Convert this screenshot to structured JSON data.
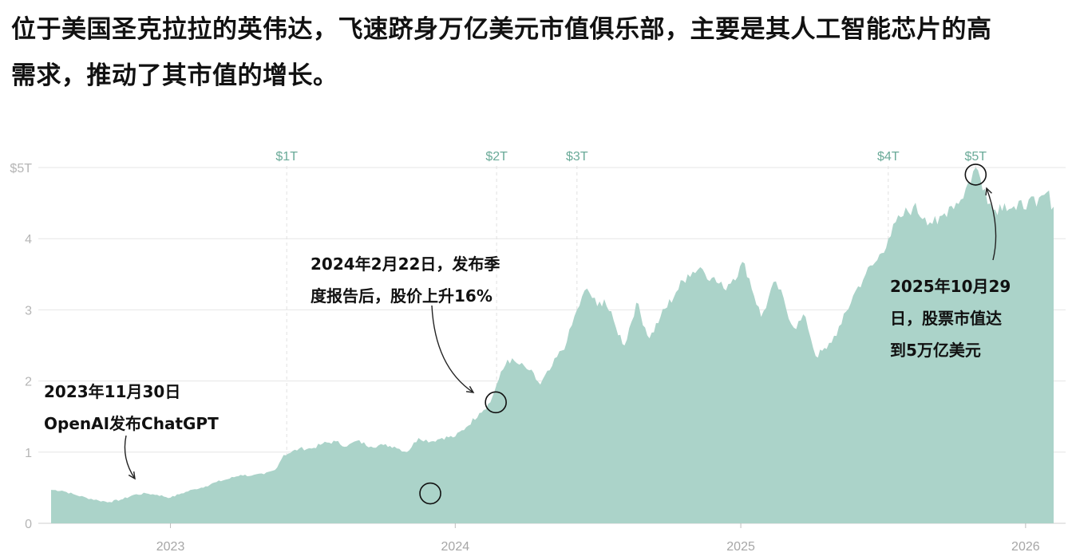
{
  "headline": {
    "line1": "位于美国圣克拉拉的英伟达，飞速跻身万亿美元市值俱乐部，主要是其人工智能芯片的高",
    "line2": "需求，推动了其市值的增长。"
  },
  "chart_data": {
    "type": "area",
    "title": "",
    "xlabel": "",
    "ylabel": "",
    "ylim": [
      0,
      5
    ],
    "y_ticks": [
      "$5T",
      "4",
      "3",
      "2",
      "1",
      "0"
    ],
    "x_ticks": [
      "2023",
      "2024",
      "2025",
      "2026"
    ],
    "grid": true,
    "color": "#abd3c9",
    "milestone_color": "#6aaa98",
    "milestones": [
      {
        "label": "$1T",
        "date": "2023-05-30"
      },
      {
        "label": "$2T",
        "date": "2024-02-23"
      },
      {
        "label": "$3T",
        "date": "2024-06-05"
      },
      {
        "label": "$4T",
        "date": "2025-07-09"
      },
      {
        "label": "$5T",
        "date": "2025-10-29"
      }
    ],
    "series": [
      {
        "unit": "trillion USD",
        "points": [
          [
            "2022-08-01",
            0.47
          ],
          [
            "2022-08-15",
            0.46
          ],
          [
            "2022-09-01",
            0.4
          ],
          [
            "2022-09-15",
            0.36
          ],
          [
            "2022-10-01",
            0.32
          ],
          [
            "2022-10-15",
            0.3
          ],
          [
            "2022-11-01",
            0.34
          ],
          [
            "2022-11-15",
            0.4
          ],
          [
            "2022-12-01",
            0.42
          ],
          [
            "2022-12-15",
            0.4
          ],
          [
            "2023-01-01",
            0.36
          ],
          [
            "2023-01-15",
            0.42
          ],
          [
            "2023-02-01",
            0.48
          ],
          [
            "2023-02-15",
            0.52
          ],
          [
            "2023-03-01",
            0.58
          ],
          [
            "2023-03-15",
            0.62
          ],
          [
            "2023-04-01",
            0.68
          ],
          [
            "2023-04-15",
            0.67
          ],
          [
            "2023-05-01",
            0.69
          ],
          [
            "2023-05-15",
            0.75
          ],
          [
            "2023-05-26",
            0.96
          ],
          [
            "2023-06-01",
            0.98
          ],
          [
            "2023-06-15",
            1.05
          ],
          [
            "2023-07-01",
            1.05
          ],
          [
            "2023-07-15",
            1.12
          ],
          [
            "2023-08-01",
            1.15
          ],
          [
            "2023-08-15",
            1.08
          ],
          [
            "2023-08-28",
            1.16
          ],
          [
            "2023-09-15",
            1.08
          ],
          [
            "2023-10-01",
            1.1
          ],
          [
            "2023-10-15",
            1.08
          ],
          [
            "2023-10-31",
            1.0
          ],
          [
            "2023-11-15",
            1.2
          ],
          [
            "2023-12-01",
            1.15
          ],
          [
            "2023-12-15",
            1.2
          ],
          [
            "2024-01-01",
            1.22
          ],
          [
            "2024-01-15",
            1.35
          ],
          [
            "2024-02-01",
            1.55
          ],
          [
            "2024-02-15",
            1.7
          ],
          [
            "2024-02-23",
            1.95
          ],
          [
            "2024-03-08",
            2.3
          ],
          [
            "2024-03-20",
            2.25
          ],
          [
            "2024-04-05",
            2.15
          ],
          [
            "2024-04-19",
            1.95
          ],
          [
            "2024-05-01",
            2.15
          ],
          [
            "2024-05-23",
            2.55
          ],
          [
            "2024-06-05",
            3.0
          ],
          [
            "2024-06-18",
            3.3
          ],
          [
            "2024-07-01",
            3.05
          ],
          [
            "2024-07-10",
            3.15
          ],
          [
            "2024-07-25",
            2.75
          ],
          [
            "2024-08-05",
            2.5
          ],
          [
            "2024-08-20",
            3.1
          ],
          [
            "2024-09-06",
            2.6
          ],
          [
            "2024-09-20",
            2.9
          ],
          [
            "2024-10-10",
            3.25
          ],
          [
            "2024-10-25",
            3.5
          ],
          [
            "2024-11-10",
            3.6
          ],
          [
            "2024-11-25",
            3.45
          ],
          [
            "2024-12-10",
            3.3
          ],
          [
            "2025-01-06",
            3.65
          ],
          [
            "2025-01-27",
            2.9
          ],
          [
            "2025-02-15",
            3.4
          ],
          [
            "2025-03-10",
            2.75
          ],
          [
            "2025-03-25",
            2.9
          ],
          [
            "2025-04-07",
            2.35
          ],
          [
            "2025-04-21",
            2.45
          ],
          [
            "2025-05-10",
            2.8
          ],
          [
            "2025-05-25",
            3.2
          ],
          [
            "2025-06-10",
            3.5
          ],
          [
            "2025-06-25",
            3.7
          ],
          [
            "2025-07-09",
            4.0
          ],
          [
            "2025-07-25",
            4.3
          ],
          [
            "2025-08-10",
            4.45
          ],
          [
            "2025-08-25",
            4.3
          ],
          [
            "2025-09-10",
            4.2
          ],
          [
            "2025-09-25",
            4.45
          ],
          [
            "2025-10-10",
            4.55
          ],
          [
            "2025-10-29",
            5.0
          ],
          [
            "2025-11-10",
            4.7
          ],
          [
            "2025-11-20",
            4.4
          ],
          [
            "2025-12-05",
            4.5
          ],
          [
            "2025-12-20",
            4.4
          ],
          [
            "2026-01-05",
            4.55
          ],
          [
            "2026-01-15",
            4.45
          ],
          [
            "2026-01-28",
            4.65
          ],
          [
            "2026-02-06",
            4.45
          ]
        ]
      }
    ],
    "annotations": [
      {
        "id": "chatgpt",
        "date": "2023-11-30",
        "value": 0.42,
        "lines": [
          "2023年11月30日",
          "OpenAI发布ChatGPT"
        ]
      },
      {
        "id": "earnings",
        "date": "2024-02-22",
        "value": 1.7,
        "lines": [
          "2024年2月22日，发布季",
          "度报告后，股价上升16%"
        ]
      },
      {
        "id": "five-t",
        "date": "2025-10-29",
        "value": 4.9,
        "lines": [
          "2025年10月29",
          "日，股票市值达",
          "到5万亿美元"
        ]
      }
    ]
  }
}
